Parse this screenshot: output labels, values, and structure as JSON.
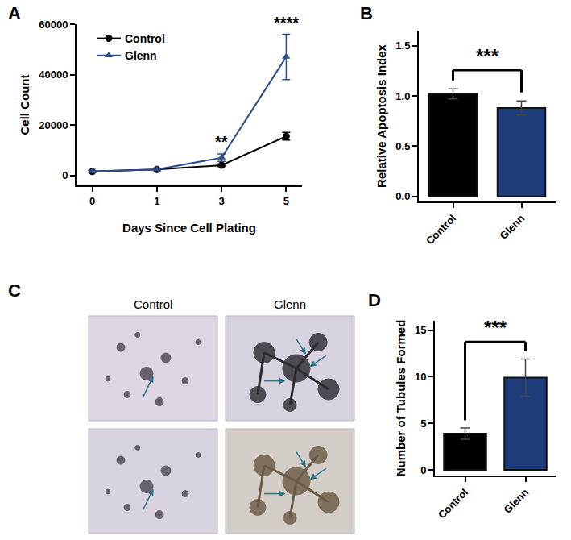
{
  "chart_data": [
    {
      "panel": "A",
      "type": "line",
      "x_label": "Days Since Cell Plating",
      "y_label": "Cell Count",
      "categories": [
        "0",
        "1",
        "3",
        "5"
      ],
      "series": [
        {
          "name": "Control",
          "color": "#000000",
          "marker": "circle",
          "values": [
            1500,
            2300,
            4000,
            15500
          ],
          "errors": [
            300,
            300,
            500,
            1500
          ]
        },
        {
          "name": "Glenn",
          "color": "#2b4d8c",
          "marker": "triangle-up",
          "values": [
            1600,
            2300,
            7000,
            47000
          ],
          "errors": [
            300,
            300,
            1500,
            9000
          ]
        }
      ],
      "ylim": [
        -4000,
        60000
      ],
      "yticks": [
        0,
        20000,
        40000,
        60000
      ],
      "legend": "upper left",
      "significance": [
        {
          "category": "3",
          "label": "**"
        },
        {
          "category": "5",
          "label": "****"
        }
      ]
    },
    {
      "panel": "B",
      "type": "bar",
      "y_label": "Relative Apoptosis Index",
      "categories": [
        "Control",
        "Glenn"
      ],
      "values": [
        1.02,
        0.88
      ],
      "errors": [
        0.05,
        0.07
      ],
      "colors": [
        "#000000",
        "#1f3d7a"
      ],
      "ylim": [
        -0.05,
        1.65
      ],
      "yticks": [
        {
          "value": 0,
          "label": "0.0"
        },
        {
          "value": 0.5,
          "label": "0.5"
        },
        {
          "value": 1,
          "label": "1.0"
        },
        {
          "value": 1.5,
          "label": "1.5"
        }
      ],
      "significance": [
        {
          "between": [
            "Control",
            "Glenn"
          ],
          "label": "***"
        }
      ]
    },
    {
      "panel": "C",
      "type": "image",
      "columns": [
        "Control",
        "Glenn"
      ]
    },
    {
      "panel": "D",
      "type": "bar",
      "y_label": "Number of Tubules Formed",
      "categories": [
        "Control",
        "Glenn"
      ],
      "values": [
        3.9,
        9.9
      ],
      "errors": [
        0.6,
        2.0
      ],
      "colors": [
        "#000000",
        "#1f3d7a"
      ],
      "ylim": [
        -0.6,
        16
      ],
      "yticks": [
        0,
        5,
        10,
        15
      ],
      "significance": [
        {
          "between": [
            "Control",
            "Glenn"
          ],
          "label": "***"
        }
      ]
    }
  ]
}
